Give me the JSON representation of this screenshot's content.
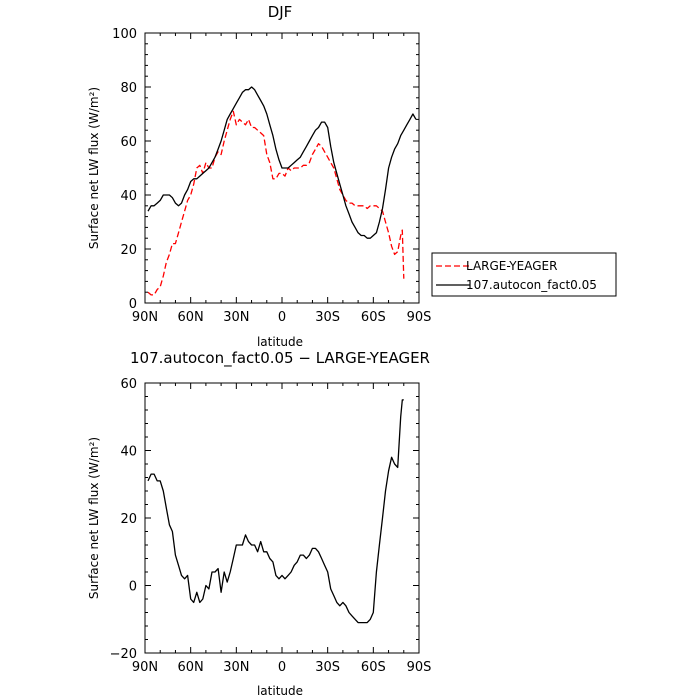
{
  "chart_data": [
    {
      "type": "line",
      "title": "DJF",
      "xlabel": "latitude",
      "ylabel": "Surface net LW flux (W/m²)",
      "xlim": [
        90,
        -90
      ],
      "ylim": [
        0,
        100
      ],
      "xticks": [
        90,
        60,
        30,
        0,
        -30,
        -60,
        -90
      ],
      "xtick_labels": [
        "90N",
        "60N",
        "30N",
        "0",
        "30S",
        "60S",
        "90S"
      ],
      "yticks": [
        0,
        20,
        40,
        60,
        80,
        100
      ],
      "ytick_labels": [
        "0",
        "20",
        "40",
        "60",
        "80",
        "100"
      ],
      "grid": false,
      "legend_position": "right",
      "series": [
        {
          "name": "LARGE-YEAGER",
          "color": "#ff0000",
          "dash": "dashed",
          "x": [
            88,
            86,
            84,
            82,
            80,
            78,
            76,
            74,
            72,
            70,
            68,
            66,
            64,
            62,
            60,
            58,
            56,
            54,
            52,
            50,
            48,
            46,
            44,
            42,
            40,
            38,
            36,
            34,
            32,
            30,
            28,
            26,
            24,
            22,
            20,
            18,
            16,
            14,
            12,
            10,
            8,
            6,
            4,
            2,
            0,
            -2,
            -4,
            -6,
            -8,
            -10,
            -12,
            -14,
            -16,
            -18,
            -20,
            -22,
            -24,
            -26,
            -28,
            -30,
            -32,
            -34,
            -36,
            -38,
            -40,
            -42,
            -44,
            -46,
            -48,
            -50,
            -52,
            -54,
            -56,
            -58,
            -60,
            -62,
            -64,
            -66,
            -68,
            -70,
            -72,
            -74,
            -76,
            -78,
            -79,
            -80
          ],
          "y": [
            4,
            3,
            3,
            5,
            6,
            10,
            15,
            18,
            22,
            22,
            26,
            30,
            34,
            38,
            40,
            44,
            50,
            51,
            48,
            52,
            50,
            50,
            54,
            56,
            55,
            60,
            64,
            68,
            71,
            66,
            68,
            67,
            66,
            68,
            65,
            65,
            64,
            63,
            62,
            55,
            52,
            46,
            46,
            48,
            48,
            47,
            50,
            49,
            50,
            50,
            50,
            51,
            51,
            52,
            55,
            57,
            59,
            58,
            56,
            54,
            52,
            50,
            46,
            42,
            40,
            38,
            37,
            37,
            36,
            36,
            36,
            36,
            35,
            36,
            36,
            36,
            35,
            34,
            30,
            26,
            21,
            18,
            19,
            25,
            27,
            9
          ]
        },
        {
          "name": "107.autocon_fact0.05",
          "color": "#000000",
          "dash": "solid",
          "x": [
            88,
            86,
            84,
            82,
            80,
            78,
            76,
            74,
            72,
            70,
            68,
            66,
            64,
            62,
            60,
            58,
            56,
            54,
            52,
            50,
            48,
            46,
            44,
            42,
            40,
            38,
            36,
            34,
            32,
            30,
            28,
            26,
            24,
            22,
            20,
            18,
            16,
            14,
            12,
            10,
            8,
            6,
            4,
            2,
            0,
            -2,
            -4,
            -6,
            -8,
            -10,
            -12,
            -14,
            -16,
            -18,
            -20,
            -22,
            -24,
            -26,
            -28,
            -30,
            -32,
            -34,
            -36,
            -38,
            -40,
            -42,
            -44,
            -46,
            -48,
            -50,
            -52,
            -54,
            -56,
            -58,
            -60,
            -62,
            -64,
            -66,
            -68,
            -70,
            -72,
            -74,
            -76,
            -78,
            -80,
            -82,
            -84,
            -86,
            -88
          ],
          "y": [
            34,
            36,
            36,
            37,
            38,
            40,
            40,
            40,
            39,
            37,
            36,
            37,
            40,
            42,
            45,
            46,
            46,
            47,
            48,
            49,
            50,
            52,
            54,
            57,
            60,
            64,
            68,
            70,
            72,
            74,
            76,
            78,
            79,
            79,
            80,
            79,
            77,
            75,
            73,
            70,
            66,
            62,
            57,
            53,
            50,
            50,
            50,
            51,
            52,
            53,
            54,
            56,
            58,
            60,
            62,
            64,
            65,
            67,
            67,
            65,
            58,
            52,
            48,
            44,
            40,
            36,
            33,
            30,
            28,
            26,
            25,
            25,
            24,
            24,
            25,
            26,
            30,
            35,
            42,
            50,
            54,
            57,
            59,
            62,
            64,
            66,
            68,
            70,
            68
          ]
        }
      ]
    },
    {
      "type": "line",
      "title": "107.autocon_fact0.05 − LARGE-YEAGER",
      "xlabel": "latitude",
      "ylabel": "Surface net LW flux (W/m²)",
      "xlim": [
        90,
        -90
      ],
      "ylim": [
        -20,
        60
      ],
      "xticks": [
        90,
        60,
        30,
        0,
        -30,
        -60,
        -90
      ],
      "xtick_labels": [
        "90N",
        "60N",
        "30N",
        "0",
        "30S",
        "60S",
        "90S"
      ],
      "yticks": [
        -20,
        0,
        20,
        40,
        60
      ],
      "ytick_labels": [
        "−20",
        "0",
        "20",
        "40",
        "60"
      ],
      "grid": false,
      "series": [
        {
          "color": "#000000",
          "dash": "solid",
          "x": [
            88,
            86,
            84,
            82,
            80,
            78,
            76,
            74,
            72,
            70,
            68,
            66,
            64,
            62,
            60,
            58,
            56,
            54,
            52,
            50,
            48,
            46,
            44,
            42,
            40,
            38,
            36,
            34,
            32,
            30,
            28,
            26,
            24,
            22,
            20,
            18,
            16,
            14,
            12,
            10,
            8,
            6,
            4,
            2,
            0,
            -2,
            -4,
            -6,
            -8,
            -10,
            -12,
            -14,
            -16,
            -18,
            -20,
            -22,
            -24,
            -26,
            -28,
            -30,
            -32,
            -34,
            -36,
            -38,
            -40,
            -42,
            -44,
            -46,
            -48,
            -50,
            -52,
            -54,
            -56,
            -58,
            -60,
            -62,
            -64,
            -66,
            -68,
            -70,
            -72,
            -74,
            -76,
            -78,
            -79,
            -80
          ],
          "y": [
            31,
            33,
            33,
            31,
            31,
            28,
            23,
            18,
            16,
            9,
            6,
            3,
            2,
            3,
            -4,
            -5,
            -2,
            -5,
            -4,
            0,
            -1,
            4,
            4,
            5,
            -2,
            4,
            1,
            4,
            8,
            12,
            12,
            12,
            15,
            13,
            12,
            12,
            10,
            13,
            10,
            10,
            8,
            7,
            3,
            2,
            3,
            2,
            3,
            4,
            6,
            7,
            9,
            9,
            8,
            9,
            11,
            11,
            10,
            8,
            6,
            4,
            -1,
            -3,
            -5,
            -6,
            -5,
            -6,
            -8,
            -9,
            -10,
            -11,
            -11,
            -11,
            -11,
            -10,
            -8,
            4,
            12,
            20,
            28,
            34,
            38,
            36,
            35,
            50,
            55,
            55
          ]
        }
      ]
    }
  ]
}
